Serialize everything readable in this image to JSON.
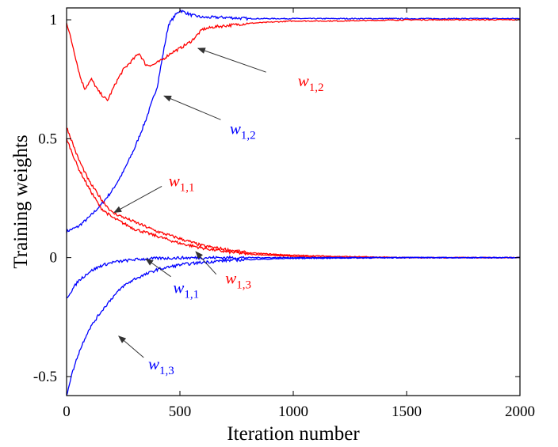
{
  "chart_data": {
    "type": "line",
    "xlabel": "Iteration number",
    "ylabel": "Training weights",
    "xlim": [
      0,
      2000
    ],
    "ylim": [
      -0.58,
      1.05
    ],
    "xticks": [
      0,
      500,
      1000,
      1500,
      2000
    ],
    "xtick_labels": [
      "0",
      "500",
      "1000",
      "1500",
      "2000"
    ],
    "yticks": [
      -0.5,
      0,
      0.5,
      1
    ],
    "ytick_labels": [
      "-0.5",
      "0",
      "0.5",
      "1"
    ],
    "grid": false,
    "series": [
      {
        "name": "w1,2",
        "color": "#0000ff",
        "x": [
          0,
          50,
          100,
          150,
          200,
          250,
          300,
          350,
          400,
          430,
          450,
          480,
          500,
          550,
          600,
          700,
          800,
          1000,
          1200,
          1500,
          2000
        ],
        "y": [
          0.11,
          0.13,
          0.17,
          0.22,
          0.28,
          0.36,
          0.46,
          0.58,
          0.72,
          0.88,
          0.98,
          1.02,
          1.04,
          1.02,
          1.01,
          1.01,
          1.005,
          1.005,
          1.005,
          1.005,
          1.005
        ]
      },
      {
        "name": "w1,2",
        "color": "#ff0000",
        "x": [
          0,
          30,
          60,
          80,
          110,
          140,
          180,
          220,
          250,
          290,
          320,
          350,
          380,
          420,
          460,
          500,
          550,
          600,
          650,
          700,
          800,
          900,
          1000,
          1200,
          1500,
          1800,
          2000
        ],
        "y": [
          0.99,
          0.88,
          0.76,
          0.71,
          0.75,
          0.7,
          0.66,
          0.74,
          0.79,
          0.83,
          0.86,
          0.81,
          0.81,
          0.83,
          0.86,
          0.88,
          0.91,
          0.96,
          0.97,
          0.975,
          0.985,
          0.99,
          0.995,
          0.995,
          1.0,
          1.0,
          1.0
        ]
      },
      {
        "name": "w1,1",
        "color": "#ff0000",
        "x": [
          0,
          50,
          100,
          150,
          200,
          300,
          400,
          500,
          600,
          700,
          800,
          1000,
          1200,
          1500,
          2000
        ],
        "y": [
          0.5,
          0.38,
          0.29,
          0.21,
          0.17,
          0.12,
          0.09,
          0.06,
          0.04,
          0.025,
          0.015,
          0.005,
          0.0,
          0.0,
          0.0
        ]
      },
      {
        "name": "w1,3",
        "color": "#ff0000",
        "x": [
          0,
          50,
          100,
          150,
          200,
          300,
          400,
          500,
          600,
          700,
          800,
          1000,
          1200,
          1500,
          2000
        ],
        "y": [
          0.55,
          0.42,
          0.32,
          0.25,
          0.19,
          0.15,
          0.11,
          0.08,
          0.05,
          0.035,
          0.02,
          0.01,
          0.005,
          0.0,
          0.0
        ]
      },
      {
        "name": "w1,1",
        "color": "#0000ff",
        "x": [
          0,
          50,
          100,
          150,
          200,
          300,
          400,
          500,
          700,
          1000,
          2000
        ],
        "y": [
          -0.17,
          -0.1,
          -0.06,
          -0.035,
          -0.02,
          -0.008,
          -0.003,
          -0.001,
          0.0,
          0.0,
          0.0
        ]
      },
      {
        "name": "w1,3",
        "color": "#0000ff",
        "x": [
          0,
          20,
          50,
          80,
          100,
          150,
          200,
          250,
          300,
          400,
          500,
          600,
          700,
          800,
          1000,
          1500,
          2000
        ],
        "y": [
          -0.58,
          -0.5,
          -0.41,
          -0.34,
          -0.3,
          -0.23,
          -0.17,
          -0.12,
          -0.09,
          -0.05,
          -0.03,
          -0.02,
          -0.012,
          -0.008,
          -0.003,
          0.0,
          0.0
        ]
      }
    ],
    "annotations": [
      {
        "label_base": "w",
        "label_sub": "1,2",
        "color": "#ff0000",
        "text_x": 1020,
        "text_y": 0.72,
        "arrow_from": [
          880,
          0.78
        ],
        "arrow_to": [
          580,
          0.88
        ]
      },
      {
        "label_base": "w",
        "label_sub": "1,2",
        "color": "#0000ff",
        "text_x": 720,
        "text_y": 0.52,
        "arrow_from": [
          680,
          0.58
        ],
        "arrow_to": [
          430,
          0.68
        ]
      },
      {
        "label_base": "w",
        "label_sub": "1,1",
        "color": "#ff0000",
        "text_x": 450,
        "text_y": 0.3,
        "arrow_from": [
          420,
          0.3
        ],
        "arrow_to": [
          210,
          0.19
        ]
      },
      {
        "label_base": "w",
        "label_sub": "1,3",
        "color": "#ff0000",
        "text_x": 700,
        "text_y": -0.11,
        "arrow_from": [
          660,
          -0.07
        ],
        "arrow_to": [
          570,
          0.025
        ]
      },
      {
        "label_base": "w",
        "label_sub": "1,1",
        "color": "#0000ff",
        "text_x": 470,
        "text_y": -0.15,
        "arrow_from": [
          460,
          -0.08
        ],
        "arrow_to": [
          350,
          -0.005
        ]
      },
      {
        "label_base": "w",
        "label_sub": "1,3",
        "color": "#0000ff",
        "text_x": 360,
        "text_y": -0.47,
        "arrow_from": [
          340,
          -0.42
        ],
        "arrow_to": [
          230,
          -0.33
        ]
      }
    ]
  }
}
